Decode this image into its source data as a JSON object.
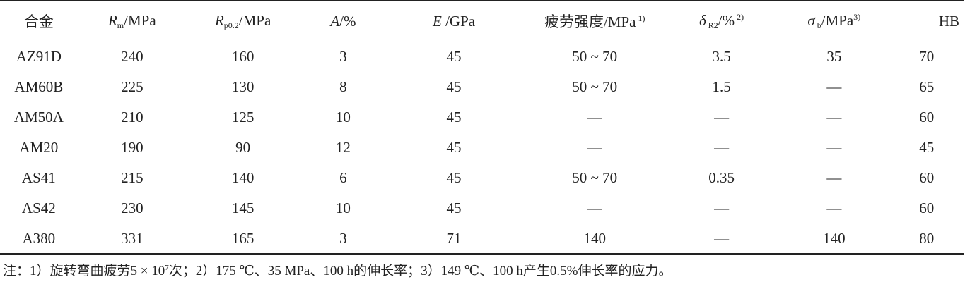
{
  "header": {
    "alloy": "合金",
    "rm_sym": "R",
    "rm_sub": "m",
    "rm_unit": "/MPa",
    "rp_sym": "R",
    "rp_sub": "p0.2",
    "rp_unit": "/MPa",
    "a_sym": "A",
    "a_unit": "/%",
    "e_sym": "E",
    "e_unit": " /GPa",
    "fatigue": "疲劳强度/MPa",
    "fatigue_note": " 1)",
    "delta_sym": "δ",
    "delta_sub": " R2",
    "delta_unit": "/%",
    "delta_note": " 2)",
    "sigma_sym": "σ",
    "sigma_sub": " b",
    "sigma_unit": "/MPa",
    "sigma_note": "3)",
    "hb": "HB"
  },
  "rows": [
    [
      "AZ91D",
      "240",
      "160",
      "3",
      "45",
      "50 ~ 70",
      "3.5",
      "35",
      "70"
    ],
    [
      "AM60B",
      "225",
      "130",
      "8",
      "45",
      "50 ~ 70",
      "1.5",
      "—",
      "65"
    ],
    [
      "AM50A",
      "210",
      "125",
      "10",
      "45",
      "—",
      "—",
      "—",
      "60"
    ],
    [
      "AM20",
      "190",
      "90",
      "12",
      "45",
      "—",
      "—",
      "—",
      "45"
    ],
    [
      "AS41",
      "215",
      "140",
      "6",
      "45",
      "50 ~ 70",
      "0.35",
      "—",
      "60"
    ],
    [
      "AS42",
      "230",
      "145",
      "10",
      "45",
      "—",
      "—",
      "—",
      "60"
    ],
    [
      "A380",
      "331",
      "165",
      "3",
      "71",
      "140",
      "—",
      "140",
      "80"
    ]
  ],
  "note": {
    "part1": "注：1）旋转弯曲疲劳5 × 10",
    "exp": "7",
    "part2": "次；2）175 ℃、35 MPa、100 h的伸长率；3）149 ℃、100 h产生0.5%伸长率的应力。"
  }
}
